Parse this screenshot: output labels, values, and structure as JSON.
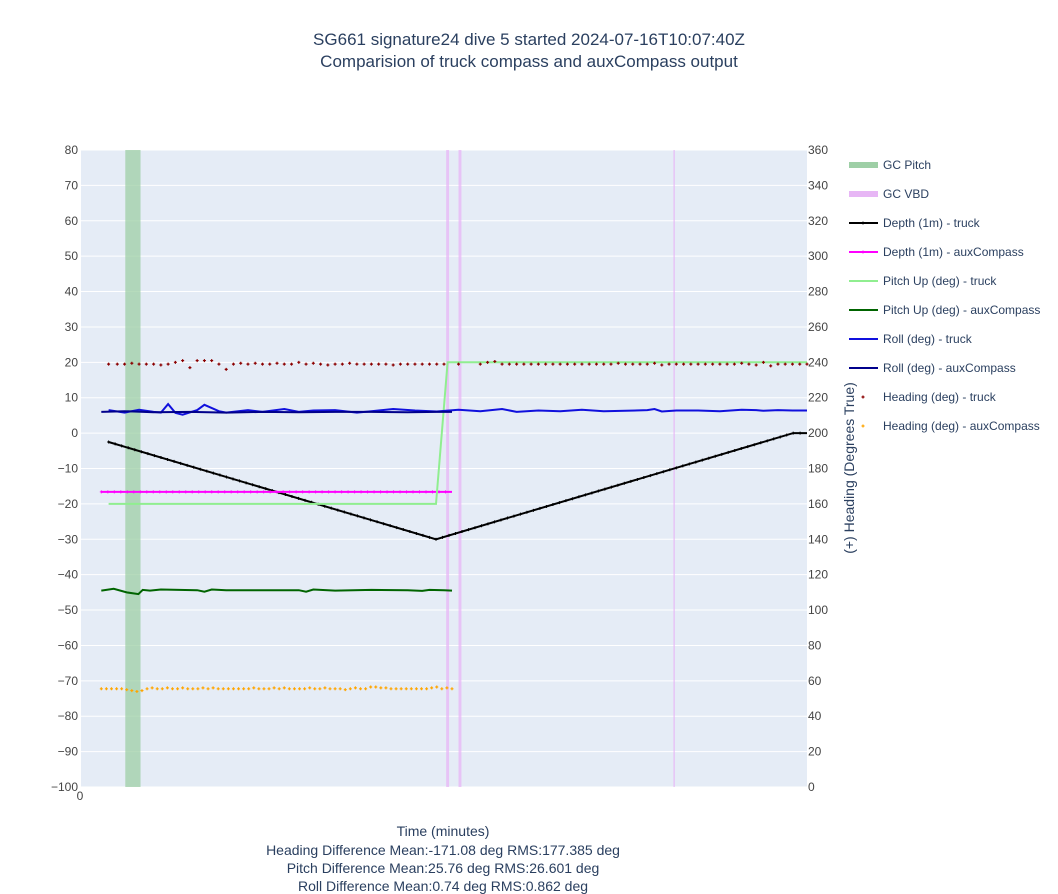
{
  "chart_data": {
    "type": "line",
    "title": "SG661 signature24 dive 5 started 2024-07-16T10:07:40Z",
    "subtitle": "Comparision of truck compass and auxCompass output",
    "xlabel": "Time (minutes)",
    "x_tick_labels": [
      "0"
    ],
    "y_left_ticks": [
      80,
      70,
      60,
      50,
      40,
      30,
      20,
      10,
      0,
      -10,
      -20,
      -30,
      -40,
      -50,
      -60,
      -70,
      -80,
      -90,
      -100
    ],
    "y_left_tick_labels": [
      "80",
      "70",
      "60",
      "50",
      "40",
      "30",
      "20",
      "10",
      "0",
      "−10",
      "−20",
      "−30",
      "−40",
      "−50",
      "−60",
      "−70",
      "−80",
      "−90",
      "−100"
    ],
    "ylim_left": [
      -100,
      80
    ],
    "y_right_ticks": [
      360,
      340,
      320,
      300,
      280,
      260,
      240,
      220,
      200,
      180,
      160,
      140,
      120,
      100,
      80,
      60,
      40,
      20,
      0
    ],
    "y_right_tick_labels": [
      "360",
      "340",
      "320",
      "300",
      "280",
      "260",
      "240",
      "220",
      "200",
      "180",
      "160",
      "140",
      "120",
      "100",
      "80",
      "60",
      "40",
      "20",
      "0"
    ],
    "ylim_right": [
      0,
      360
    ],
    "ylabel_right": "(+) Heading (Degrees True)",
    "xlim": [
      0,
      1
    ],
    "grid": true,
    "plot_bgcolor": "#e5ecf6",
    "legend_position": "right",
    "stats": [
      "Heading Difference Mean:-171.08 deg RMS:177.385 deg",
      "Pitch Difference Mean:25.76 deg RMS:26.601 deg",
      "Roll Difference Mean:0.74 deg RMS:0.862 deg"
    ],
    "shaded_regions": [
      {
        "name": "GC Pitch",
        "color": "#9ecfa6",
        "x": [
          [
            0.061,
            0.082
          ]
        ]
      },
      {
        "name": "GC VBD",
        "color": "#e7b6f5",
        "x": [
          [
            0.503,
            0.507
          ],
          [
            0.52,
            0.524
          ],
          [
            0.816,
            0.818
          ]
        ]
      }
    ],
    "series": [
      {
        "name": "Depth (1m) - truck",
        "color": "#000000",
        "axis": "left",
        "style": "line+markers",
        "x": [
          0.038,
          0.489,
          0.981,
          1.0
        ],
        "y": [
          -2.5,
          -30,
          0,
          0
        ]
      },
      {
        "name": "Depth (1m) - auxCompass",
        "color": "#ff00ff",
        "axis": "left",
        "style": "line+markers",
        "x": [
          0.028,
          0.511
        ],
        "y": [
          -16.6,
          -16.6
        ]
      },
      {
        "name": "Pitch Up (deg) - truck",
        "color": "#90ee90",
        "axis": "left",
        "style": "line",
        "x": [
          0.038,
          0.489,
          0.505,
          1.0
        ],
        "y": [
          -20,
          -20,
          20,
          20
        ]
      },
      {
        "name": "Pitch Up (deg) - auxCompass",
        "color": "#006400",
        "axis": "left",
        "style": "line",
        "x": [
          0.028,
          0.045,
          0.063,
          0.079,
          0.085,
          0.095,
          0.11,
          0.16,
          0.17,
          0.18,
          0.2,
          0.3,
          0.31,
          0.32,
          0.35,
          0.4,
          0.45,
          0.47,
          0.48,
          0.5,
          0.511
        ],
        "y": [
          -44.5,
          -44,
          -45,
          -45.5,
          -44.3,
          -44.5,
          -44.2,
          -44.4,
          -44.8,
          -44.2,
          -44.4,
          -44.4,
          -44.8,
          -44.2,
          -44.5,
          -44.3,
          -44.4,
          -44.6,
          -44.3,
          -44.4,
          -44.5
        ]
      },
      {
        "name": "Roll (deg) - truck",
        "color": "#1010dd",
        "axis": "left",
        "style": "line",
        "x": [
          0.038,
          0.06,
          0.08,
          0.1,
          0.11,
          0.12,
          0.13,
          0.14,
          0.16,
          0.17,
          0.19,
          0.2,
          0.23,
          0.25,
          0.28,
          0.3,
          0.32,
          0.35,
          0.38,
          0.4,
          0.43,
          0.46,
          0.49,
          0.52,
          0.55,
          0.58,
          0.6,
          0.63,
          0.66,
          0.69,
          0.72,
          0.75,
          0.78,
          0.79,
          0.8,
          0.82,
          0.85,
          0.88,
          0.91,
          0.93,
          0.94,
          0.96,
          0.98,
          1.0
        ],
        "y": [
          6.5,
          5.8,
          6.6,
          6,
          5.8,
          8.2,
          5.7,
          5.2,
          6.5,
          8,
          6.2,
          5.8,
          6.5,
          6,
          6.8,
          6,
          6.4,
          6.5,
          5.8,
          6.2,
          6.8,
          6.4,
          6.1,
          6.6,
          6.2,
          6.8,
          6,
          6.4,
          6.2,
          6.6,
          6.2,
          6.3,
          6.5,
          6.8,
          6.1,
          6.4,
          6.4,
          6.2,
          6.6,
          6.5,
          6.3,
          6.5,
          6.4,
          6.4
        ]
      },
      {
        "name": "Roll (deg) - auxCompass",
        "color": "#00008b",
        "axis": "left",
        "style": "line",
        "x": [
          0.028,
          0.06,
          0.1,
          0.15,
          0.2,
          0.25,
          0.3,
          0.35,
          0.4,
          0.45,
          0.49,
          0.511
        ],
        "y": [
          6,
          6.2,
          5.9,
          6,
          5.8,
          6,
          5.9,
          6,
          6,
          5.9,
          6,
          6
        ]
      },
      {
        "name": "Heading (deg) - truck",
        "color": "#8b0000",
        "axis": "right",
        "style": "markers",
        "x": [
          0.038,
          0.05,
          0.06,
          0.07,
          0.08,
          0.09,
          0.1,
          0.11,
          0.12,
          0.13,
          0.14,
          0.15,
          0.16,
          0.17,
          0.18,
          0.19,
          0.2,
          0.21,
          0.22,
          0.23,
          0.24,
          0.25,
          0.26,
          0.27,
          0.28,
          0.29,
          0.3,
          0.31,
          0.32,
          0.33,
          0.34,
          0.35,
          0.36,
          0.37,
          0.38,
          0.39,
          0.4,
          0.41,
          0.42,
          0.43,
          0.44,
          0.45,
          0.46,
          0.47,
          0.48,
          0.49,
          0.5,
          0.52,
          0.55,
          0.56,
          0.57,
          0.58,
          0.59,
          0.6,
          0.61,
          0.62,
          0.63,
          0.64,
          0.65,
          0.66,
          0.67,
          0.68,
          0.69,
          0.7,
          0.71,
          0.72,
          0.73,
          0.74,
          0.75,
          0.76,
          0.77,
          0.78,
          0.79,
          0.8,
          0.81,
          0.82,
          0.83,
          0.84,
          0.85,
          0.86,
          0.87,
          0.88,
          0.89,
          0.9,
          0.91,
          0.92,
          0.93,
          0.94,
          0.95,
          0.96,
          0.97,
          0.98,
          0.99,
          1.0
        ],
        "y": [
          239,
          239,
          239,
          239.5,
          239,
          239,
          239,
          238.5,
          239,
          240,
          241,
          237,
          241,
          241,
          241,
          239,
          236,
          239,
          239.5,
          239,
          239.5,
          239,
          239,
          239.5,
          239,
          239,
          240,
          239,
          239.5,
          239,
          238.5,
          239,
          239,
          239.5,
          239,
          239,
          239,
          239,
          239,
          238.5,
          239,
          239,
          239,
          239,
          239,
          239,
          239,
          239,
          239,
          240,
          240.5,
          239,
          239,
          239,
          239,
          239,
          239,
          239,
          239,
          239,
          239,
          239,
          239,
          239,
          239,
          239,
          239,
          239.5,
          239,
          239,
          239,
          239,
          239.5,
          238.5,
          239,
          239,
          239,
          239,
          239,
          239,
          239,
          239,
          239,
          239,
          239.5,
          239,
          238.5,
          240,
          238,
          239,
          239,
          239,
          239,
          239
        ]
      },
      {
        "name": "Heading (deg) - auxCompass",
        "color": "#ffa500",
        "axis": "right",
        "style": "markers",
        "x": [
          0.028,
          0.035,
          0.042,
          0.049,
          0.056,
          0.063,
          0.07,
          0.077,
          0.084,
          0.091,
          0.098,
          0.105,
          0.112,
          0.119,
          0.126,
          0.133,
          0.14,
          0.147,
          0.154,
          0.161,
          0.168,
          0.175,
          0.182,
          0.189,
          0.196,
          0.203,
          0.21,
          0.217,
          0.224,
          0.231,
          0.238,
          0.245,
          0.252,
          0.259,
          0.266,
          0.273,
          0.28,
          0.287,
          0.294,
          0.301,
          0.308,
          0.315,
          0.322,
          0.329,
          0.336,
          0.343,
          0.35,
          0.357,
          0.364,
          0.371,
          0.378,
          0.385,
          0.392,
          0.399,
          0.406,
          0.413,
          0.42,
          0.427,
          0.434,
          0.441,
          0.448,
          0.455,
          0.462,
          0.469,
          0.476,
          0.483,
          0.49,
          0.497,
          0.504,
          0.511
        ],
        "y": [
          55.5,
          55.5,
          55.5,
          55.5,
          55.5,
          55,
          54.5,
          54,
          54.5,
          55.5,
          56,
          55.5,
          55.5,
          56,
          55.5,
          55.5,
          56,
          55.5,
          55.5,
          55.5,
          56,
          55.5,
          56,
          55.5,
          55.5,
          55.5,
          55.5,
          55.5,
          55.5,
          55.5,
          56,
          55.5,
          55.5,
          55.5,
          56,
          55.5,
          56,
          55.5,
          55.5,
          55.5,
          55.5,
          56,
          55.5,
          55.5,
          56,
          55.5,
          55.5,
          55.5,
          55,
          55.5,
          56,
          55.5,
          55.5,
          56.5,
          56.5,
          56,
          56,
          55.5,
          55.5,
          55.5,
          55.5,
          55.5,
          55.5,
          55.5,
          55.5,
          56,
          56.5,
          55.5,
          56,
          55.5
        ]
      }
    ]
  }
}
